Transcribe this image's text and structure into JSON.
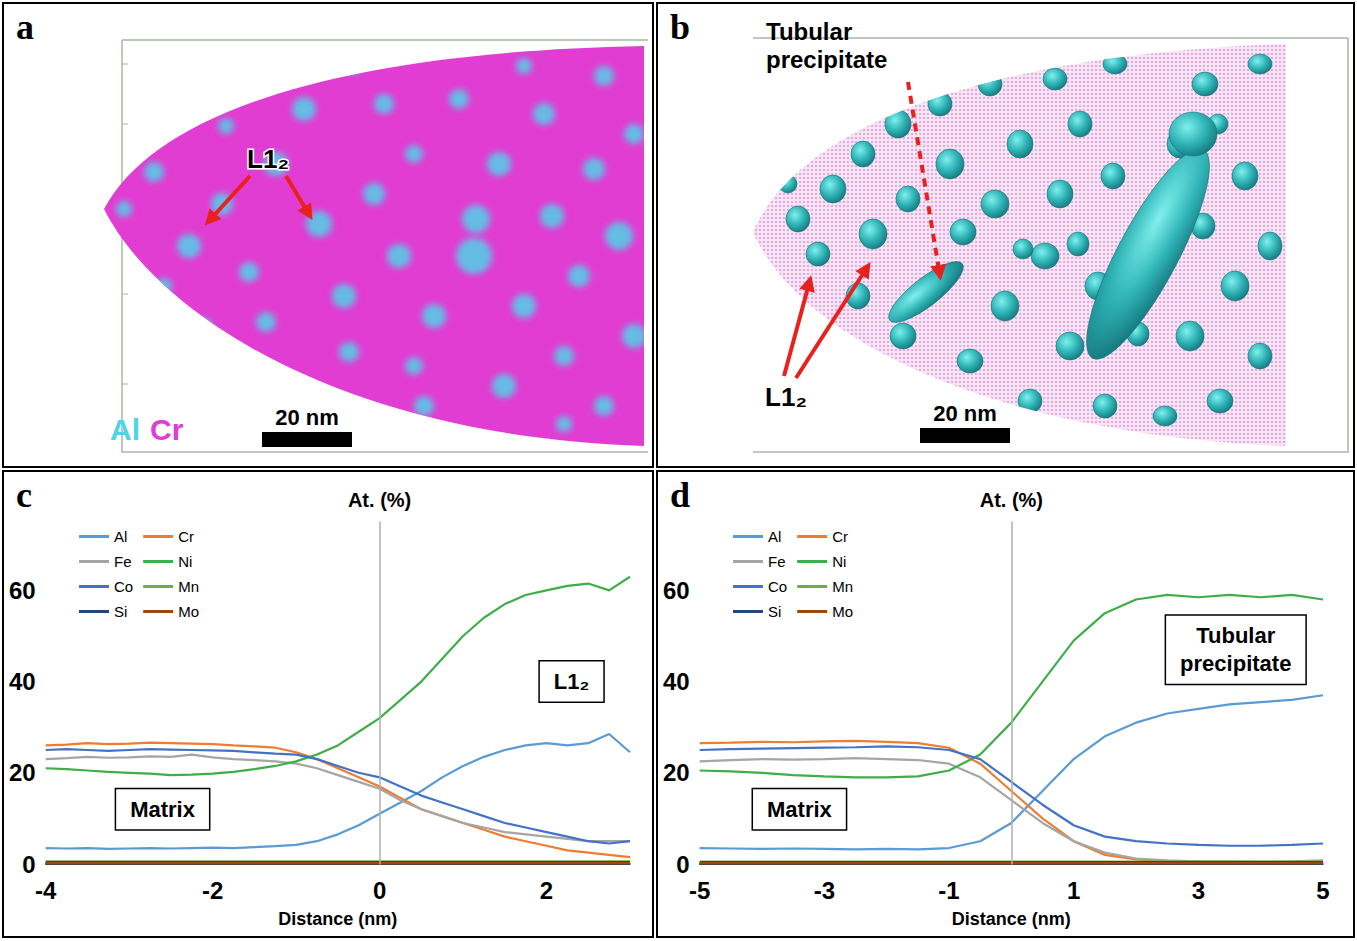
{
  "atom_maps": [
    {
      "letter": "a",
      "labels": [
        "L1₂"
      ],
      "element_key": [
        {
          "text": "Al",
          "color": "#4fd3e8"
        },
        {
          "text": "Cr",
          "color": "#e23dd2"
        }
      ],
      "scale_bar": "20 nm"
    },
    {
      "letter": "b",
      "labels": [
        "Tubular precipitate",
        "L1₂"
      ],
      "scale_bar": "20 nm"
    }
  ],
  "chart_data": [
    {
      "type": "line",
      "letter": "c",
      "x": [
        -4,
        -3.75,
        -3.5,
        -3.25,
        -3,
        -2.75,
        -2.5,
        -2.25,
        -2,
        -1.75,
        -1.5,
        -1.25,
        -1,
        -0.75,
        -0.5,
        -0.25,
        0,
        0.25,
        0.5,
        0.75,
        1,
        1.25,
        1.5,
        1.75,
        2,
        2.25,
        2.5,
        2.75,
        3
      ],
      "series": [
        {
          "name": "Al",
          "color": "#5b9bd5",
          "values": [
            3.5,
            3.4,
            3.5,
            3.3,
            3.4,
            3.5,
            3.4,
            3.5,
            3.6,
            3.5,
            3.7,
            3.9,
            4.2,
            5,
            6.5,
            8.5,
            11,
            13.5,
            16,
            19,
            21.5,
            23.5,
            25,
            26,
            26.5,
            26,
            26.5,
            28.5,
            24.5
          ]
        },
        {
          "name": "Cr",
          "color": "#ed7d31",
          "values": [
            26,
            26.2,
            26.5,
            26.3,
            26.4,
            26.6,
            26.5,
            26.4,
            26.3,
            26,
            25.8,
            25.5,
            24.5,
            23,
            21,
            19,
            17,
            14.5,
            12,
            10.5,
            9,
            7.5,
            6,
            5,
            4,
            3,
            2.5,
            2,
            1.5
          ]
        },
        {
          "name": "Fe",
          "color": "#a5a5a5",
          "values": [
            23,
            23.2,
            23.5,
            23.3,
            23.4,
            23.6,
            23.5,
            24,
            23.4,
            23,
            22.8,
            22.5,
            22,
            21,
            19.5,
            18,
            16.5,
            14,
            12,
            10.5,
            9,
            8,
            7,
            6.5,
            6,
            5.5,
            5,
            5,
            5
          ]
        },
        {
          "name": "Ni",
          "color": "#3fae49",
          "values": [
            21,
            20.8,
            20.5,
            20.2,
            20,
            19.8,
            19.5,
            19.6,
            19.8,
            20.2,
            20.8,
            21.5,
            22.5,
            24,
            26,
            29,
            32,
            36,
            40,
            45,
            50,
            54,
            57,
            59,
            60,
            61,
            61.5,
            60,
            63
          ]
        },
        {
          "name": "Co",
          "color": "#4472c4",
          "values": [
            25,
            25.2,
            25,
            24.8,
            25,
            25.2,
            25.1,
            25,
            24.9,
            24.8,
            24.5,
            24.2,
            24,
            23,
            21.5,
            20,
            19,
            17,
            15,
            13.5,
            12,
            10.5,
            9,
            8,
            7,
            6,
            5,
            4.5,
            5
          ]
        },
        {
          "name": "Mn",
          "color": "#70ad47",
          "values": [
            0.6,
            0.6,
            0.6,
            0.6,
            0.6,
            0.6,
            0.6,
            0.6,
            0.6,
            0.6,
            0.6,
            0.6,
            0.6,
            0.6,
            0.6,
            0.6,
            0.6,
            0.6,
            0.6,
            0.6,
            0.6,
            0.6,
            0.6,
            0.6,
            0.6,
            0.6,
            0.6,
            0.6,
            0.6
          ]
        },
        {
          "name": "Si",
          "color": "#264478",
          "values": [
            0.4,
            0.4,
            0.4,
            0.4,
            0.4,
            0.4,
            0.4,
            0.4,
            0.4,
            0.4,
            0.4,
            0.4,
            0.4,
            0.4,
            0.4,
            0.4,
            0.4,
            0.4,
            0.4,
            0.4,
            0.4,
            0.4,
            0.4,
            0.4,
            0.4,
            0.4,
            0.4,
            0.4,
            0.4
          ]
        },
        {
          "name": "Mo",
          "color": "#9e480e",
          "values": [
            0.2,
            0.2,
            0.2,
            0.2,
            0.2,
            0.2,
            0.2,
            0.2,
            0.2,
            0.2,
            0.2,
            0.2,
            0.2,
            0.2,
            0.2,
            0.2,
            0.2,
            0.2,
            0.2,
            0.2,
            0.2,
            0.2,
            0.2,
            0.2,
            0.2,
            0.2,
            0.2,
            0.2,
            0.2
          ]
        }
      ],
      "xlim": [
        -4,
        3
      ],
      "xticks": [
        -4,
        -2,
        0,
        2
      ],
      "ylim": [
        0,
        75
      ],
      "yticks": [
        0,
        20,
        40,
        60
      ],
      "x_label": "Distance (nm)",
      "y_label": "At. (%)",
      "annotations": [
        "Matrix",
        "L1₂"
      ],
      "legend": "upper left",
      "grid": false
    },
    {
      "type": "line",
      "letter": "d",
      "x": [
        -5,
        -4.5,
        -4,
        -3.5,
        -3,
        -2.5,
        -2,
        -1.5,
        -1,
        -0.5,
        0,
        0.5,
        1,
        1.5,
        2,
        2.5,
        3,
        3.5,
        4,
        4.5,
        5
      ],
      "series": [
        {
          "name": "Al",
          "color": "#5b9bd5",
          "values": [
            3.5,
            3.4,
            3.3,
            3.4,
            3.3,
            3.2,
            3.3,
            3.2,
            3.5,
            5,
            9,
            16,
            23,
            28,
            31,
            33,
            34,
            35,
            35.5,
            36,
            37
          ]
        },
        {
          "name": "Cr",
          "color": "#ed7d31",
          "values": [
            26.5,
            26.6,
            26.8,
            26.7,
            26.9,
            27,
            26.8,
            26.5,
            25.5,
            22,
            16,
            10,
            5,
            2,
            1,
            0.6,
            0.5,
            0.5,
            0.4,
            0.5,
            0.5
          ]
        },
        {
          "name": "Fe",
          "color": "#a5a5a5",
          "values": [
            22.5,
            22.8,
            23,
            22.9,
            23,
            23.2,
            23,
            22.8,
            22,
            19,
            14,
            9,
            5,
            2.5,
            1.2,
            0.8,
            0.6,
            0.5,
            0.5,
            0.6,
            0.8
          ]
        },
        {
          "name": "Ni",
          "color": "#3fae49",
          "values": [
            20.5,
            20.3,
            20,
            19.5,
            19.2,
            19,
            19,
            19.2,
            20.5,
            24,
            31,
            40,
            49,
            55,
            58,
            59,
            58.5,
            59,
            58.5,
            59,
            58
          ]
        },
        {
          "name": "Co",
          "color": "#4472c4",
          "values": [
            25,
            25.2,
            25.3,
            25.4,
            25.5,
            25.6,
            25.8,
            25.6,
            25,
            23,
            18,
            13,
            8.5,
            6,
            5,
            4.5,
            4.2,
            4,
            4,
            4.2,
            4.5
          ]
        },
        {
          "name": "Mn",
          "color": "#70ad47",
          "values": [
            0.5,
            0.5,
            0.5,
            0.5,
            0.5,
            0.5,
            0.5,
            0.5,
            0.5,
            0.5,
            0.5,
            0.5,
            0.5,
            0.5,
            0.5,
            0.5,
            0.5,
            0.5,
            0.5,
            0.5,
            0.5
          ]
        },
        {
          "name": "Si",
          "color": "#264478",
          "values": [
            0.4,
            0.4,
            0.4,
            0.4,
            0.4,
            0.4,
            0.4,
            0.4,
            0.4,
            0.4,
            0.4,
            0.4,
            0.4,
            0.4,
            0.4,
            0.4,
            0.4,
            0.4,
            0.4,
            0.4,
            0.4
          ]
        },
        {
          "name": "Mo",
          "color": "#9e480e",
          "values": [
            0.2,
            0.2,
            0.2,
            0.2,
            0.2,
            0.2,
            0.2,
            0.2,
            0.2,
            0.2,
            0.2,
            0.2,
            0.2,
            0.2,
            0.2,
            0.2,
            0.2,
            0.2,
            0.2,
            0.2,
            0.2
          ]
        }
      ],
      "xlim": [
        -5,
        5
      ],
      "xticks": [
        -5,
        -3,
        -1,
        1,
        3,
        5
      ],
      "ylim": [
        0,
        75
      ],
      "yticks": [
        0,
        20,
        40,
        60
      ],
      "x_label": "Distance (nm)",
      "y_label": "At. (%)",
      "annotations": [
        "Matrix",
        "Tubular precipitate"
      ],
      "legend": "upper left",
      "grid": false
    }
  ]
}
